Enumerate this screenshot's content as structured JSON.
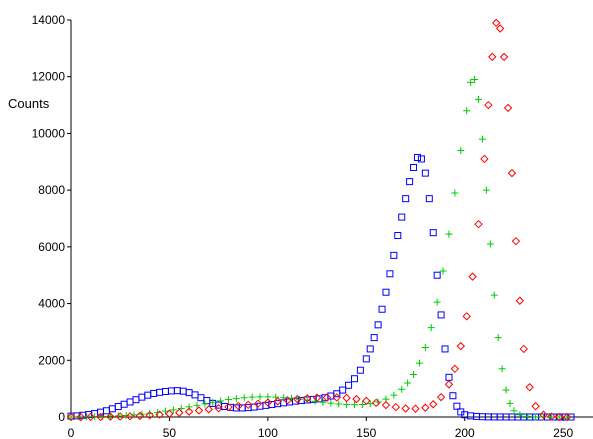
{
  "chart_data": {
    "type": "scatter",
    "title": "",
    "xlabel": "",
    "ylabel": "Counts",
    "xlim": [
      0,
      255
    ],
    "ylim": [
      0,
      14000
    ],
    "x_ticks": [
      0,
      50,
      100,
      150,
      200,
      250
    ],
    "y_ticks": [
      0,
      2000,
      4000,
      6000,
      8000,
      10000,
      12000,
      14000
    ],
    "grid": false,
    "legend": "none",
    "series": [
      {
        "marker": "square",
        "color": "#0000ff",
        "x": [
          0,
          3,
          6,
          9,
          12,
          15,
          18,
          21,
          24,
          27,
          30,
          33,
          36,
          39,
          42,
          45,
          48,
          51,
          54,
          57,
          60,
          63,
          66,
          69,
          72,
          75,
          78,
          81,
          84,
          87,
          90,
          93,
          96,
          99,
          102,
          105,
          108,
          111,
          114,
          117,
          120,
          123,
          126,
          129,
          132,
          135,
          138,
          141,
          144,
          147,
          150,
          152,
          154,
          156,
          158,
          160,
          162,
          164,
          166,
          168,
          170,
          172,
          174,
          176,
          178,
          180,
          182,
          184,
          186,
          188,
          190,
          192,
          194,
          196,
          198,
          200,
          203,
          206,
          209,
          212,
          215,
          218,
          221,
          224,
          227,
          230,
          233,
          236,
          239,
          242,
          245,
          248,
          251,
          254
        ],
        "y": [
          30,
          40,
          60,
          90,
          120,
          170,
          220,
          290,
          370,
          450,
          530,
          610,
          700,
          770,
          830,
          870,
          900,
          920,
          930,
          910,
          860,
          780,
          680,
          580,
          480,
          420,
          370,
          340,
          320,
          320,
          330,
          350,
          380,
          410,
          440,
          470,
          500,
          530,
          560,
          580,
          600,
          620,
          640,
          680,
          740,
          820,
          950,
          1120,
          1350,
          1650,
          2050,
          2400,
          2800,
          3250,
          3800,
          4400,
          5050,
          5700,
          6400,
          7050,
          7700,
          8300,
          8800,
          9150,
          9100,
          8600,
          7700,
          6500,
          5000,
          3600,
          2400,
          1400,
          750,
          380,
          180,
          80,
          40,
          20,
          10,
          5,
          3,
          2,
          1,
          1,
          0,
          0,
          0,
          0,
          0,
          0,
          0,
          0,
          0,
          0
        ]
      },
      {
        "marker": "plus",
        "color": "#00cc00",
        "x": [
          0,
          4,
          8,
          12,
          16,
          20,
          24,
          28,
          32,
          36,
          40,
          44,
          48,
          52,
          56,
          60,
          64,
          68,
          72,
          76,
          80,
          84,
          88,
          92,
          96,
          100,
          104,
          108,
          112,
          116,
          120,
          124,
          128,
          132,
          136,
          140,
          144,
          148,
          152,
          156,
          160,
          164,
          168,
          171,
          174,
          177,
          180,
          183,
          186,
          189,
          192,
          195,
          198,
          201,
          203,
          205,
          207,
          209,
          211,
          213,
          215,
          217,
          219,
          221,
          223,
          225,
          228,
          232,
          236,
          240,
          244,
          248,
          252
        ],
        "y": [
          0,
          5,
          10,
          15,
          20,
          30,
          40,
          55,
          75,
          100,
          130,
          165,
          205,
          250,
          300,
          355,
          410,
          465,
          520,
          570,
          615,
          650,
          680,
          700,
          710,
          710,
          700,
          680,
          655,
          625,
          590,
          555,
          520,
          490,
          460,
          440,
          430,
          440,
          470,
          530,
          630,
          770,
          980,
          1200,
          1500,
          1900,
          2450,
          3150,
          4050,
          5150,
          6450,
          7900,
          9400,
          10800,
          11800,
          11900,
          11200,
          9800,
          8000,
          6100,
          4300,
          2800,
          1700,
          950,
          480,
          220,
          80,
          20,
          5,
          0,
          0,
          0,
          0
        ]
      },
      {
        "marker": "diamond",
        "color": "#ff0000",
        "x": [
          0,
          5,
          10,
          15,
          20,
          25,
          30,
          35,
          40,
          45,
          50,
          55,
          60,
          65,
          70,
          75,
          80,
          85,
          90,
          95,
          100,
          105,
          110,
          115,
          120,
          125,
          130,
          135,
          140,
          145,
          150,
          155,
          160,
          165,
          170,
          175,
          180,
          184,
          188,
          192,
          195,
          198,
          201,
          204,
          207,
          210,
          212,
          214,
          216,
          218,
          220,
          222,
          224,
          226,
          228,
          230,
          233,
          236,
          240,
          244,
          248,
          252
        ],
        "y": [
          0,
          0,
          5,
          5,
          10,
          15,
          25,
          40,
          60,
          85,
          115,
          150,
          190,
          230,
          270,
          310,
          350,
          390,
          430,
          470,
          510,
          550,
          590,
          630,
          660,
          680,
          690,
          690,
          670,
          630,
          570,
          500,
          420,
          350,
          300,
          290,
          330,
          450,
          700,
          1150,
          1700,
          2500,
          3550,
          4950,
          6800,
          9100,
          11000,
          12700,
          13900,
          13700,
          12700,
          10900,
          8600,
          6200,
          4100,
          2400,
          1050,
          380,
          80,
          15,
          0,
          0
        ]
      }
    ]
  }
}
